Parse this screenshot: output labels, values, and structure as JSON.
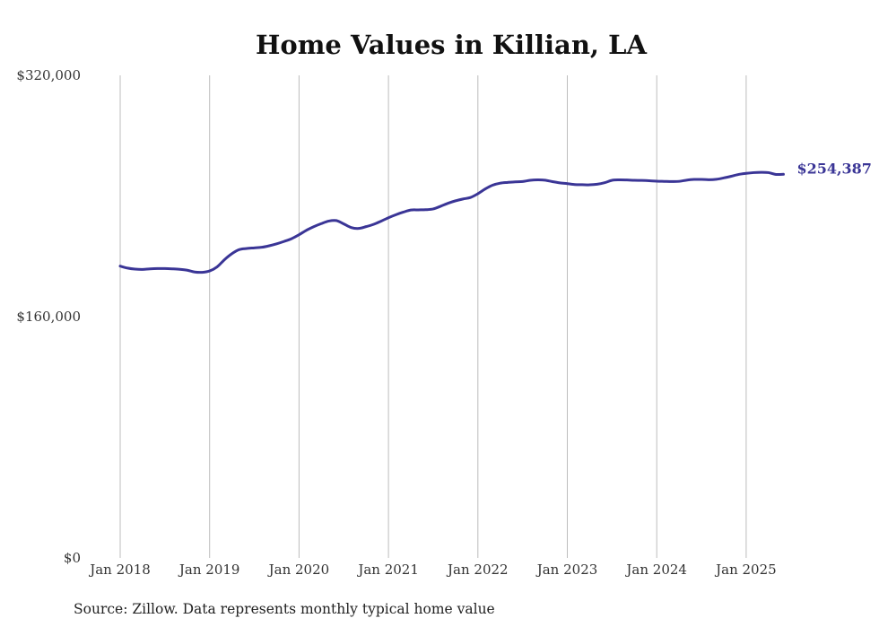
{
  "chart_data": {
    "type": "line",
    "title": "Home Values in Killian, LA",
    "xlabel": "",
    "ylabel": "",
    "ylim": [
      0,
      320000
    ],
    "yticks": [
      0,
      160000,
      320000
    ],
    "ytick_labels": [
      "$0",
      "$160,000",
      "$320,000"
    ],
    "x_start": "2018-01",
    "x_end": "2025-06",
    "xticks": [
      "2018-01",
      "2019-01",
      "2020-01",
      "2021-01",
      "2022-01",
      "2023-01",
      "2024-01",
      "2025-01"
    ],
    "xtick_labels": [
      "Jan 2018",
      "Jan 2019",
      "Jan 2020",
      "Jan 2021",
      "Jan 2022",
      "Jan 2023",
      "Jan 2024",
      "Jan 2025"
    ],
    "grid": "vertical",
    "series": [
      {
        "name": "Typical home value",
        "color": "#3a3596",
        "start": "2018-01",
        "values": [
          193500,
          192200,
          191500,
          191300,
          191700,
          191900,
          191900,
          191700,
          191400,
          190800,
          189600,
          189400,
          190300,
          193000,
          197800,
          201800,
          204500,
          205200,
          205600,
          206000,
          207000,
          208300,
          209900,
          211700,
          214300,
          217300,
          219700,
          221700,
          223400,
          223700,
          221500,
          219100,
          218500,
          219700,
          221200,
          223300,
          225600,
          227600,
          229300,
          230700,
          230800,
          230900,
          231400,
          233200,
          235200,
          236800,
          238000,
          239000,
          241500,
          244700,
          247200,
          248500,
          249000,
          249400,
          249600,
          250400,
          250700,
          250500,
          249500,
          248700,
          248200,
          247600,
          247500,
          247400,
          247800,
          248800,
          250400,
          250700,
          250600,
          250400,
          250300,
          250100,
          249800,
          249700,
          249600,
          249700,
          250500,
          251000,
          251000,
          250800,
          251100,
          252000,
          253100,
          254300,
          255000,
          255500,
          255700,
          255500,
          254300,
          254387
        ],
        "end_label": "$254,387"
      }
    ],
    "source_note": "Source: Zillow. Data represents monthly typical home value"
  }
}
